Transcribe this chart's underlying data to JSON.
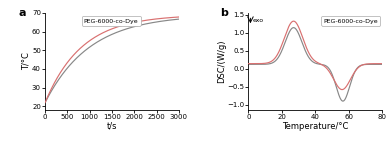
{
  "panel_a": {
    "xlabel": "t/s",
    "ylabel": "T/°C",
    "xlim": [
      0,
      3000
    ],
    "ylim": [
      18,
      70
    ],
    "yticks": [
      20,
      30,
      40,
      50,
      60,
      70
    ],
    "xticks": [
      0,
      500,
      1000,
      1500,
      2000,
      2500,
      3000
    ],
    "label": "PEG-6000-co-Dye",
    "color_black": "#888888",
    "color_red": "#d97070"
  },
  "panel_b": {
    "xlabel": "Temperature/°C",
    "ylabel": "DSC/(W/g)",
    "xlim": [
      0,
      80
    ],
    "ylim": [
      -1.15,
      1.55
    ],
    "yticks": [
      -1.0,
      -0.5,
      0.0,
      0.5,
      1.0,
      1.5
    ],
    "xticks": [
      0,
      20,
      40,
      60,
      80
    ],
    "label": "PEG-6000-co-Dye",
    "color_black": "#888888",
    "color_red": "#d97070",
    "exo_label": "exo"
  }
}
